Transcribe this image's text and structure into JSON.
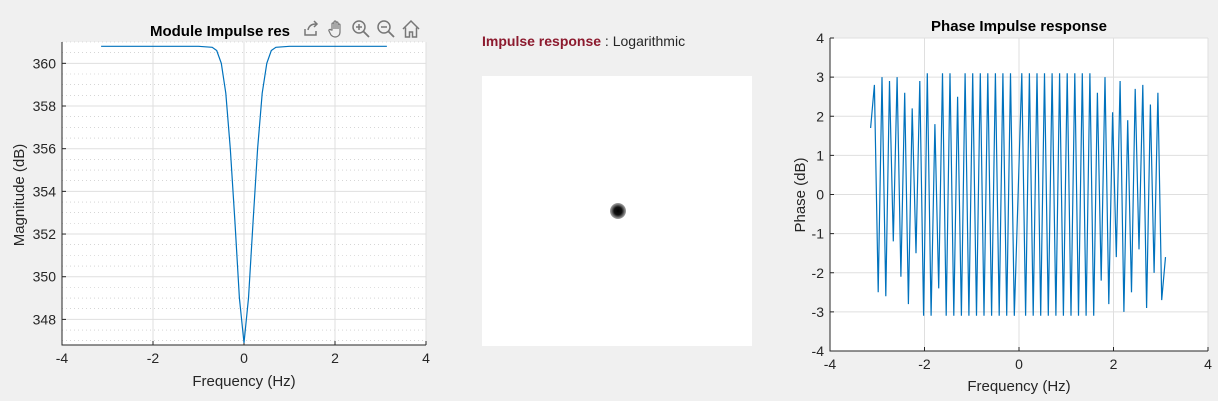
{
  "module_chart": {
    "title": "Module Impulse res",
    "xlabel": "Frequency (Hz)",
    "ylabel": "Magnitude (dB)"
  },
  "middle": {
    "title": "Impulse response",
    "separator": " : ",
    "mode": "Logarithmic"
  },
  "phase_chart": {
    "title": "Phase Impulse response",
    "xlabel": "Frequency (Hz)",
    "ylabel": "Phase (dB)"
  },
  "toolbar": [
    "export-icon",
    "pan-icon",
    "zoom-in-icon",
    "zoom-out-icon",
    "home-icon"
  ],
  "colors": {
    "line": "#0072bd",
    "title_accent": "#8c1a2e"
  },
  "chart_data": [
    {
      "type": "line",
      "title": "Module Impulse res",
      "xlabel": "Frequency (Hz)",
      "ylabel": "Magnitude (dB)",
      "xlim": [
        -4,
        4
      ],
      "ylim": [
        346.8,
        361
      ],
      "xticks": [
        -4,
        -2,
        0,
        2,
        4
      ],
      "yticks": [
        348,
        350,
        352,
        354,
        356,
        358,
        360
      ],
      "grid": true,
      "minor_grid": true,
      "series": [
        {
          "x": [
            -3.14,
            -2.0,
            -1.0,
            -0.7,
            -0.6,
            -0.5,
            -0.4,
            -0.3,
            -0.2,
            -0.1,
            0.0,
            0.1,
            0.2,
            0.3,
            0.4,
            0.5,
            0.6,
            0.7,
            1.0,
            2.0,
            3.14
          ],
          "values": [
            360.8,
            360.8,
            360.8,
            360.75,
            360.6,
            360.0,
            358.6,
            356.0,
            352.6,
            349.0,
            346.9,
            349.0,
            352.6,
            356.0,
            358.6,
            360.0,
            360.6,
            360.75,
            360.8,
            360.8,
            360.8
          ]
        }
      ]
    },
    {
      "type": "line",
      "title": "Phase Impulse response",
      "xlabel": "Frequency (Hz)",
      "ylabel": "Phase (dB)",
      "xlim": [
        -4,
        4
      ],
      "ylim": [
        -4,
        4
      ],
      "xticks": [
        -4,
        -2,
        0,
        2,
        4
      ],
      "yticks": [
        -4,
        -3,
        -2,
        -1,
        0,
        1,
        2,
        3,
        4
      ],
      "grid": true,
      "series": [
        {
          "x": [
            -3.14,
            -3.06,
            -2.98,
            -2.9,
            -2.82,
            -2.74,
            -2.66,
            -2.58,
            -2.5,
            -2.42,
            -2.34,
            -2.26,
            -2.18,
            -2.1,
            -2.02,
            -1.94,
            -1.86,
            -1.78,
            -1.7,
            -1.62,
            -1.54,
            -1.46,
            -1.38,
            -1.3,
            -1.22,
            -1.14,
            -1.06,
            -0.98,
            -0.9,
            -0.82,
            -0.74,
            -0.66,
            -0.58,
            -0.5,
            -0.42,
            -0.34,
            -0.26,
            -0.18,
            -0.1,
            -0.02,
            0.06,
            0.14,
            0.22,
            0.3,
            0.38,
            0.46,
            0.54,
            0.62,
            0.7,
            0.78,
            0.86,
            0.94,
            1.02,
            1.1,
            1.18,
            1.26,
            1.34,
            1.42,
            1.5,
            1.58,
            1.66,
            1.74,
            1.82,
            1.9,
            1.98,
            2.06,
            2.14,
            2.22,
            2.3,
            2.38,
            2.46,
            2.54,
            2.62,
            2.7,
            2.78,
            2.86,
            2.94,
            3.02,
            3.1
          ],
          "values": [
            1.7,
            2.8,
            -2.5,
            3.0,
            -2.6,
            2.9,
            -1.2,
            3.0,
            -2.1,
            2.6,
            -2.8,
            2.2,
            -1.5,
            2.9,
            -3.1,
            3.1,
            -3.1,
            1.8,
            -2.4,
            3.1,
            -3.1,
            3.1,
            -3.1,
            2.5,
            -3.1,
            3.1,
            -3.1,
            3.1,
            -3.1,
            3.1,
            -3.1,
            3.1,
            -3.1,
            3.1,
            -3.1,
            3.1,
            -3.1,
            3.1,
            -3.1,
            0.0,
            3.1,
            -3.1,
            3.1,
            -3.1,
            3.1,
            -3.1,
            3.1,
            -3.1,
            3.1,
            -3.1,
            3.1,
            -3.1,
            3.1,
            -3.1,
            3.1,
            -3.1,
            3.1,
            -3.1,
            3.1,
            -3.1,
            2.6,
            -2.2,
            3.0,
            -2.8,
            2.1,
            -1.6,
            2.9,
            -3.0,
            1.9,
            -2.5,
            2.7,
            -1.4,
            2.8,
            -2.9,
            2.3,
            -2.0,
            2.6,
            -2.7,
            -1.6
          ]
        }
      ]
    }
  ]
}
